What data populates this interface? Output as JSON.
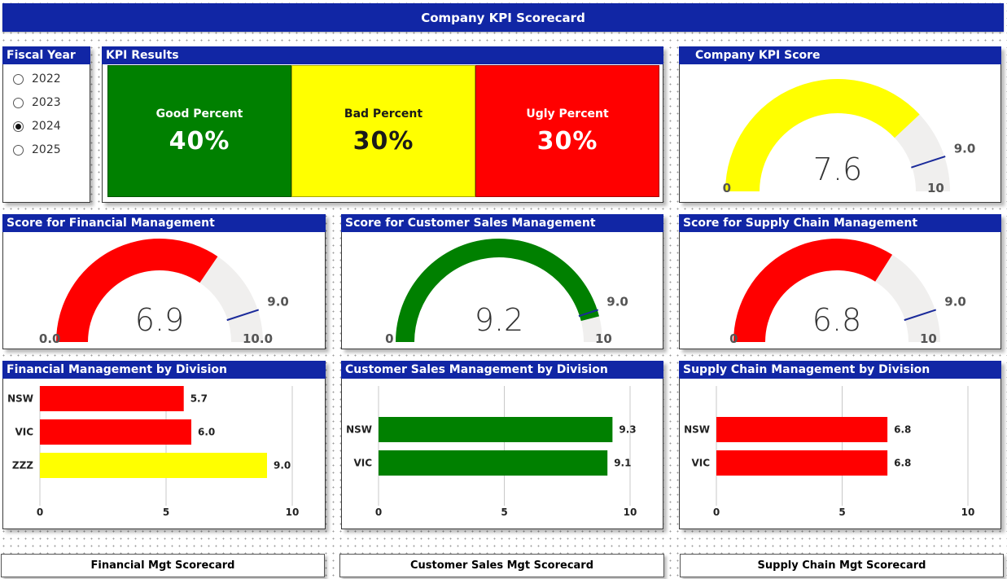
{
  "title": "Company KPI Scorecard",
  "fiscal_year": {
    "title": "Fiscal Year",
    "options": [
      {
        "label": "2022",
        "checked": false
      },
      {
        "label": "2023",
        "checked": false
      },
      {
        "label": "2024",
        "checked": true
      },
      {
        "label": "2025",
        "checked": false
      }
    ]
  },
  "kpi_results": {
    "title": "KPI Results",
    "tiles": [
      {
        "label": "Good Percent",
        "value": "40%",
        "color": "#008000",
        "text_color": "#ffffff"
      },
      {
        "label": "Bad Percent",
        "value": "30%",
        "color": "#ffff00",
        "text_color": "#1a1a1a"
      },
      {
        "label": "Ugly Percent",
        "value": "30%",
        "color": "#ff0000",
        "text_color": "#ffffff"
      }
    ]
  },
  "gauges": {
    "company": {
      "title": "Company KPI Score",
      "value": 7.6,
      "value_text": "7.6",
      "min": 0,
      "max": 10,
      "target": 9.0,
      "min_text": "0",
      "max_text": "10",
      "target_text": "9.0",
      "color": "#ffff00"
    },
    "financial": {
      "title": "Score for Financial Management",
      "value": 6.9,
      "value_text": "6.9",
      "min": 0,
      "max": 10,
      "target": 9.0,
      "min_text": "0.0",
      "max_text": "10.0",
      "target_text": "9.0",
      "color": "#ff0000"
    },
    "customer": {
      "title": "Score for Customer Sales Management",
      "value": 9.2,
      "value_text": "9.2",
      "min": 0,
      "max": 10,
      "target": 9.0,
      "min_text": "0",
      "max_text": "10",
      "target_text": "9.0",
      "color": "#008000"
    },
    "supply": {
      "title": "Score for Supply Chain Management",
      "value": 6.8,
      "value_text": "6.8",
      "min": 0,
      "max": 10,
      "target": 9.0,
      "min_text": "0",
      "max_text": "10",
      "target_text": "9.0",
      "color": "#ff0000"
    }
  },
  "chart_data": [
    {
      "type": "bar",
      "orientation": "horizontal",
      "title": "Financial Management by Division",
      "categories": [
        "NSW",
        "VIC",
        "ZZZ"
      ],
      "values": [
        5.7,
        6.0,
        9.0
      ],
      "value_labels": [
        "5.7",
        "6.0",
        "9.0"
      ],
      "colors": [
        "#ff0000",
        "#ff0000",
        "#ffff00"
      ],
      "xlim": [
        0,
        10
      ],
      "ticks": [
        0,
        5,
        10
      ],
      "tick_labels": [
        "0",
        "5",
        "10"
      ],
      "grid": true
    },
    {
      "type": "bar",
      "orientation": "horizontal",
      "title": "Customer Sales Management by Division",
      "categories": [
        "NSW",
        "VIC"
      ],
      "values": [
        9.3,
        9.1
      ],
      "value_labels": [
        "9.3",
        "9.1"
      ],
      "colors": [
        "#008000",
        "#008000"
      ],
      "xlim": [
        0,
        10
      ],
      "ticks": [
        0,
        5,
        10
      ],
      "tick_labels": [
        "0",
        "5",
        "10"
      ],
      "grid": true
    },
    {
      "type": "bar",
      "orientation": "horizontal",
      "title": "Supply Chain Management by Division",
      "categories": [
        "NSW",
        "VIC"
      ],
      "values": [
        6.8,
        6.8
      ],
      "value_labels": [
        "6.8",
        "6.8"
      ],
      "colors": [
        "#ff0000",
        "#ff0000"
      ],
      "xlim": [
        0,
        10
      ],
      "ticks": [
        0,
        5,
        10
      ],
      "tick_labels": [
        "0",
        "5",
        "10"
      ],
      "grid": true
    }
  ],
  "buttons": {
    "financial": "Financial Mgt Scorecard",
    "customer": "Customer Sales Mgt Scorecard",
    "supply": "Supply Chain Mgt Scorecard"
  },
  "colors": {
    "header_blue": "#1126a5",
    "track": "#f0efee",
    "target_line": "#1a2a9a"
  }
}
